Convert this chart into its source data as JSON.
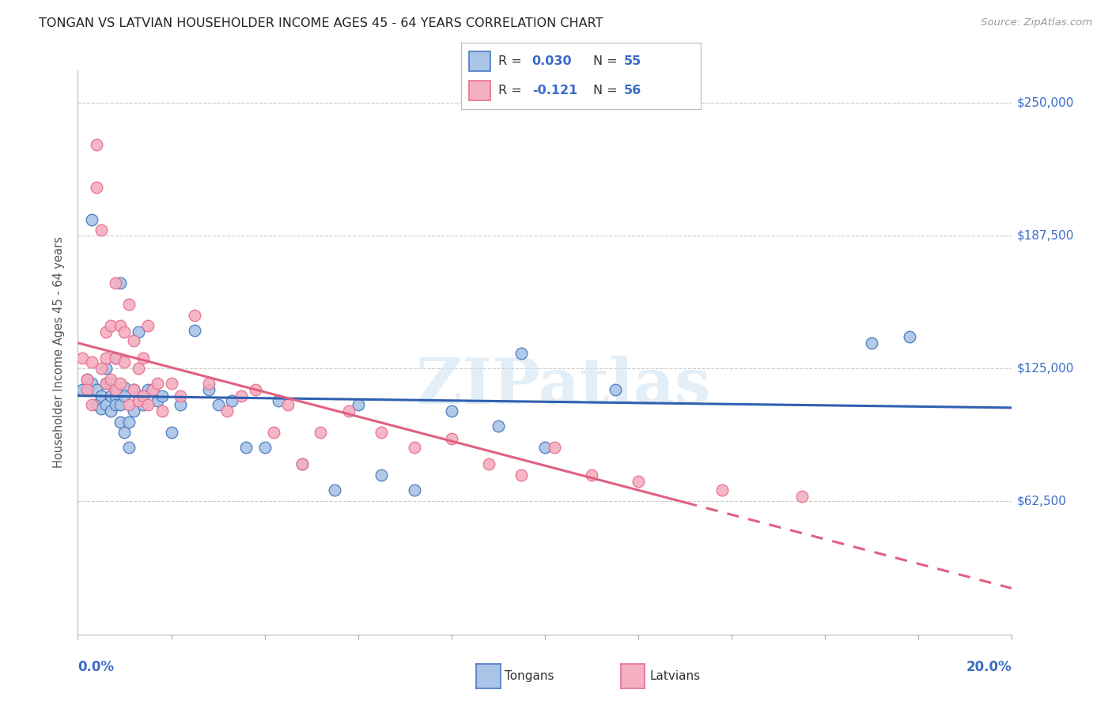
{
  "title": "TONGAN VS LATVIAN HOUSEHOLDER INCOME AGES 45 - 64 YEARS CORRELATION CHART",
  "source": "Source: ZipAtlas.com",
  "ylabel": "Householder Income Ages 45 - 64 years",
  "xmin": 0.0,
  "xmax": 0.2,
  "ymin": 0,
  "ymax": 265000,
  "yticks": [
    0,
    62500,
    125000,
    187500,
    250000
  ],
  "ytick_labels": [
    "",
    "$62,500",
    "$125,000",
    "$187,500",
    "$250,000"
  ],
  "xticks": [
    0.0,
    0.02,
    0.04,
    0.06,
    0.08,
    0.1,
    0.12,
    0.14,
    0.16,
    0.18,
    0.2
  ],
  "tongan_color": "#aac4e8",
  "latvian_color": "#f4afc0",
  "tongan_edge_color": "#4a7bbf",
  "latvian_edge_color": "#e87090",
  "tongan_line_color": "#3060b0",
  "latvian_line_color": "#e06080",
  "blue_text_color": "#3a6bc7",
  "watermark": "ZIPatlas",
  "background_color": "#ffffff",
  "grid_color": "#cccccc",
  "tongan_x": [
    0.001,
    0.002,
    0.003,
    0.003,
    0.004,
    0.004,
    0.005,
    0.005,
    0.006,
    0.006,
    0.006,
    0.007,
    0.007,
    0.007,
    0.008,
    0.008,
    0.008,
    0.009,
    0.009,
    0.009,
    0.01,
    0.01,
    0.01,
    0.011,
    0.011,
    0.012,
    0.012,
    0.013,
    0.013,
    0.014,
    0.015,
    0.016,
    0.017,
    0.018,
    0.02,
    0.022,
    0.025,
    0.028,
    0.03,
    0.033,
    0.036,
    0.04,
    0.043,
    0.048,
    0.055,
    0.06,
    0.065,
    0.072,
    0.08,
    0.09,
    0.095,
    0.1,
    0.115,
    0.17,
    0.178
  ],
  "tongan_y": [
    115000,
    120000,
    118000,
    195000,
    115000,
    108000,
    112000,
    106000,
    125000,
    118000,
    108000,
    112000,
    118000,
    105000,
    130000,
    112000,
    108000,
    165000,
    108000,
    100000,
    116000,
    112000,
    95000,
    100000,
    88000,
    115000,
    105000,
    142000,
    112000,
    108000,
    115000,
    115000,
    110000,
    112000,
    95000,
    108000,
    143000,
    115000,
    108000,
    110000,
    88000,
    88000,
    110000,
    80000,
    68000,
    108000,
    75000,
    68000,
    105000,
    98000,
    132000,
    88000,
    115000,
    137000,
    140000
  ],
  "latvian_x": [
    0.001,
    0.002,
    0.002,
    0.003,
    0.003,
    0.004,
    0.004,
    0.005,
    0.005,
    0.006,
    0.006,
    0.006,
    0.007,
    0.007,
    0.008,
    0.008,
    0.008,
    0.009,
    0.009,
    0.01,
    0.01,
    0.011,
    0.011,
    0.012,
    0.012,
    0.013,
    0.013,
    0.014,
    0.014,
    0.015,
    0.015,
    0.016,
    0.017,
    0.018,
    0.02,
    0.022,
    0.025,
    0.028,
    0.032,
    0.035,
    0.038,
    0.042,
    0.045,
    0.048,
    0.052,
    0.058,
    0.065,
    0.072,
    0.08,
    0.088,
    0.095,
    0.102,
    0.11,
    0.12,
    0.138,
    0.155
  ],
  "latvian_y": [
    130000,
    120000,
    115000,
    128000,
    108000,
    230000,
    210000,
    125000,
    190000,
    142000,
    130000,
    118000,
    145000,
    120000,
    165000,
    130000,
    115000,
    145000,
    118000,
    142000,
    128000,
    155000,
    108000,
    138000,
    115000,
    125000,
    110000,
    130000,
    112000,
    145000,
    108000,
    115000,
    118000,
    105000,
    118000,
    112000,
    150000,
    118000,
    105000,
    112000,
    115000,
    95000,
    108000,
    80000,
    95000,
    105000,
    95000,
    88000,
    92000,
    80000,
    75000,
    88000,
    75000,
    72000,
    68000,
    65000
  ]
}
